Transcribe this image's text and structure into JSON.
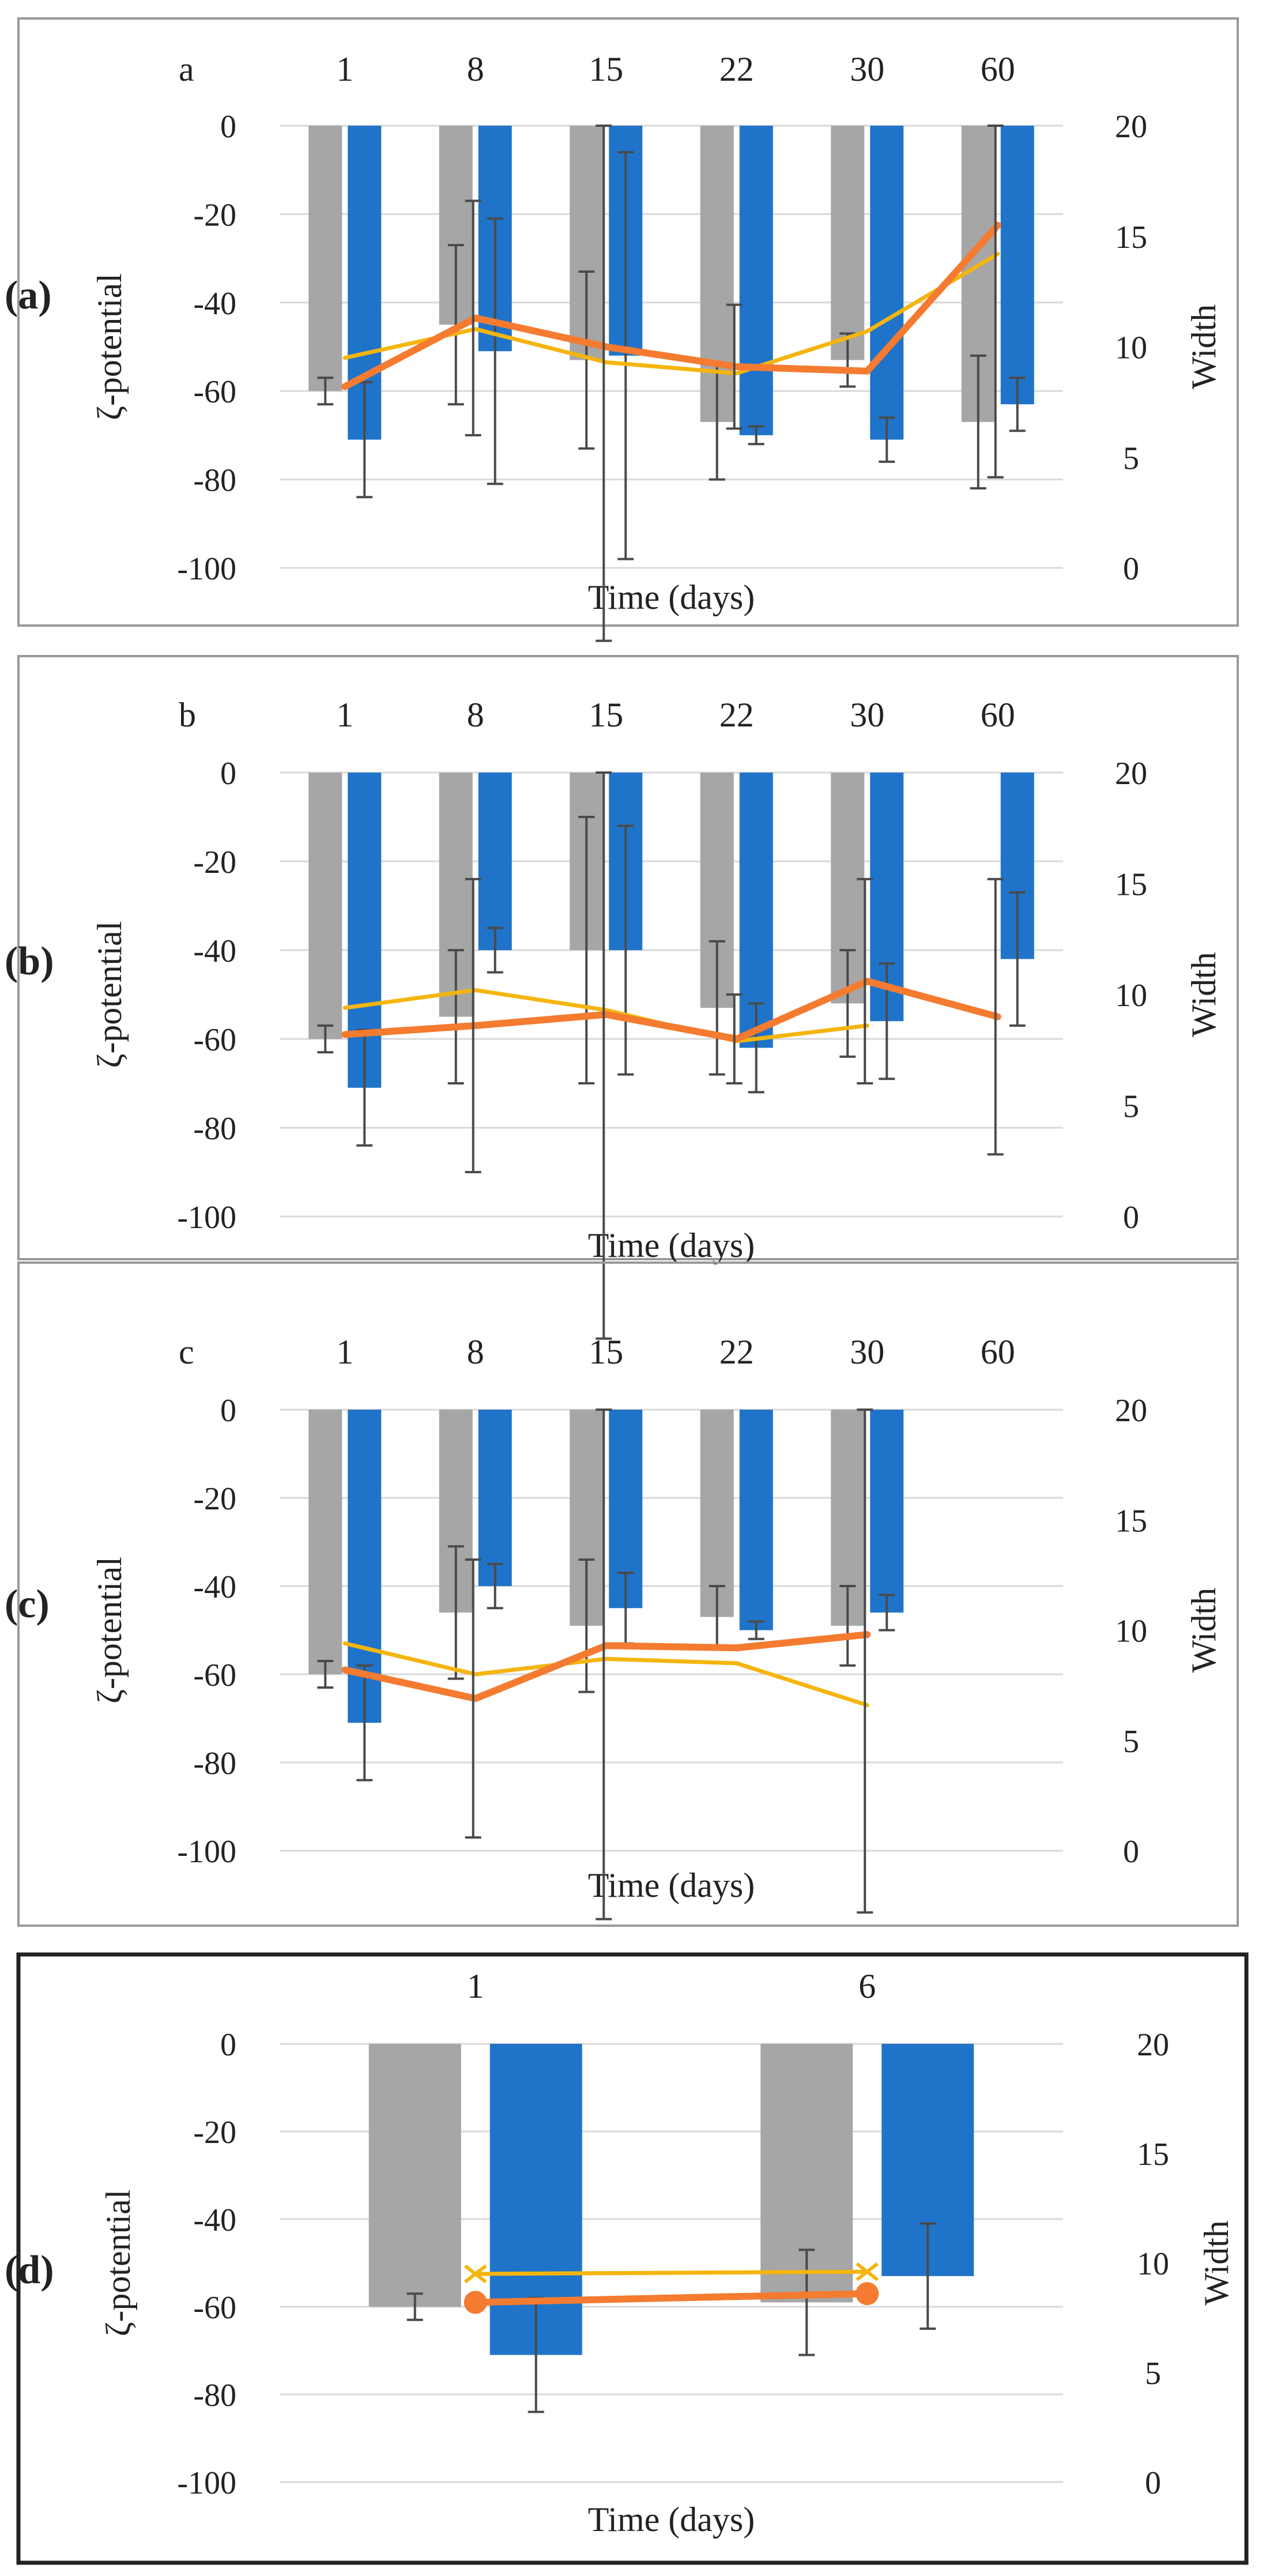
{
  "colors": {
    "gray_bar": "#a6a6a6",
    "blue_bar": "#1f74c9",
    "orange_line": "#f47b30",
    "yellow_line": "#f5b50f",
    "error_bar": "#4a4a4a",
    "grid": "#d9d9d9",
    "frame": "#999999",
    "frame_d": "#222222"
  },
  "chart_data": [
    {
      "type": "bar",
      "panel_tag": "(a)",
      "inner_label": "a",
      "categories": [
        "1",
        "8",
        "15",
        "22",
        "30",
        "60"
      ],
      "xlabel": "Time (days)",
      "ylabel": "ζ-potential",
      "y2label": "Width",
      "ylim": [
        -100,
        0
      ],
      "yticks": [
        "0",
        "-20",
        "-40",
        "-60",
        "-80",
        "-100"
      ],
      "y2lim": [
        0,
        20
      ],
      "y2ticks": [
        "20",
        "15",
        "10",
        "5",
        "0"
      ],
      "series": [
        {
          "name": "ζ-potential (gray)",
          "axis": "left",
          "kind": "bar",
          "values": [
            -60,
            -45,
            -53,
            -67,
            -53,
            -67
          ],
          "errors": [
            3,
            18,
            20,
            13,
            6,
            15
          ]
        },
        {
          "name": "ζ-potential (blue)",
          "axis": "left",
          "kind": "bar",
          "values": [
            -71,
            -51,
            -52,
            -70,
            -71,
            -63
          ],
          "errors": [
            13,
            30,
            46,
            2,
            5,
            6
          ]
        },
        {
          "name": "Width (orange)",
          "axis": "right",
          "kind": "line",
          "values": [
            8.2,
            11.3,
            10.0,
            9.1,
            8.9,
            15.5
          ],
          "errors": [
            null,
            5.3,
            13.3,
            2.8,
            null,
            11.4
          ]
        },
        {
          "name": "Width (yellow)",
          "axis": "right",
          "kind": "line",
          "values": [
            9.5,
            10.8,
            9.3,
            8.8,
            10.7,
            14.2
          ],
          "errors": [
            null,
            null,
            null,
            null,
            null,
            null
          ]
        }
      ]
    },
    {
      "type": "bar",
      "panel_tag": "(b)",
      "inner_label": "b",
      "categories": [
        "1",
        "8",
        "15",
        "22",
        "30",
        "60"
      ],
      "xlabel": "Time (days)",
      "ylabel": "ζ-potential",
      "y2label": "Width",
      "ylim": [
        -100,
        0
      ],
      "yticks": [
        "0",
        "-20",
        "-40",
        "-60",
        "-80",
        "-100"
      ],
      "y2lim": [
        0,
        20
      ],
      "y2ticks": [
        "20",
        "15",
        "10",
        "5",
        "0"
      ],
      "series": [
        {
          "name": "ζ-potential (gray)",
          "axis": "left",
          "kind": "bar",
          "values": [
            -60,
            -55,
            -40,
            -53,
            -52,
            null
          ],
          "errors": [
            3,
            15,
            30,
            15,
            12,
            null
          ]
        },
        {
          "name": "ζ-potential (blue)",
          "axis": "left",
          "kind": "bar",
          "values": [
            -71,
            -40,
            -40,
            -62,
            -56,
            -42
          ],
          "errors": [
            13,
            5,
            28,
            10,
            13,
            15
          ]
        },
        {
          "name": "Width (orange)",
          "axis": "right",
          "kind": "line",
          "values": [
            8.2,
            8.6,
            9.1,
            8.0,
            10.6,
            9.0
          ],
          "errors": [
            null,
            6.6,
            14.6,
            2.0,
            4.6,
            6.2
          ]
        },
        {
          "name": "Width (yellow)",
          "axis": "right",
          "kind": "line",
          "values": [
            9.4,
            10.2,
            9.3,
            7.9,
            8.6,
            null
          ],
          "errors": [
            null,
            null,
            null,
            null,
            null,
            null
          ]
        }
      ]
    },
    {
      "type": "bar",
      "panel_tag": "(c)",
      "inner_label": "c",
      "categories": [
        "1",
        "8",
        "15",
        "22",
        "30",
        "60"
      ],
      "xlabel": "Time (days)",
      "ylabel": "ζ-potential",
      "y2label": "Width",
      "ylim": [
        -100,
        0
      ],
      "yticks": [
        "0",
        "-20",
        "-40",
        "-60",
        "-80",
        "-100"
      ],
      "y2lim": [
        0,
        20
      ],
      "y2ticks": [
        "20",
        "15",
        "10",
        "5",
        "0"
      ],
      "series": [
        {
          "name": "ζ-potential (gray)",
          "axis": "left",
          "kind": "bar",
          "values": [
            -60,
            -46,
            -49,
            -47,
            -49,
            null
          ],
          "errors": [
            3,
            15,
            15,
            7,
            9,
            null
          ]
        },
        {
          "name": "ζ-potential (blue)",
          "axis": "left",
          "kind": "bar",
          "values": [
            -71,
            -40,
            -45,
            -50,
            -46,
            null
          ],
          "errors": [
            13,
            5,
            8,
            2,
            4,
            null
          ]
        },
        {
          "name": "Width (orange)",
          "axis": "right",
          "kind": "line",
          "values": [
            8.2,
            6.9,
            9.3,
            9.2,
            9.8,
            null
          ],
          "errors": [
            null,
            6.3,
            12.4,
            null,
            12.6,
            null
          ]
        },
        {
          "name": "Width (yellow)",
          "axis": "right",
          "kind": "line",
          "values": [
            9.4,
            8.0,
            8.7,
            8.5,
            6.6,
            null
          ],
          "errors": [
            null,
            null,
            null,
            null,
            null,
            null
          ]
        }
      ]
    },
    {
      "type": "bar",
      "panel_tag": "(d)",
      "inner_label": "",
      "categories": [
        "1",
        "6"
      ],
      "xlabel": "Time (days)",
      "ylabel": "ζ-potential",
      "y2label": "Width",
      "ylim": [
        -100,
        0
      ],
      "yticks": [
        "0",
        "-20",
        "-40",
        "-60",
        "-80",
        "-100"
      ],
      "y2lim": [
        0,
        20
      ],
      "y2ticks": [
        "20",
        "15",
        "10",
        "5",
        "0"
      ],
      "series": [
        {
          "name": "ζ-potential (gray)",
          "axis": "left",
          "kind": "bar",
          "values": [
            -60,
            -59
          ],
          "errors": [
            3,
            12
          ]
        },
        {
          "name": "ζ-potential (blue)",
          "axis": "left",
          "kind": "bar",
          "values": [
            -71,
            -53
          ],
          "errors": [
            13,
            12
          ]
        },
        {
          "name": "Width (orange)",
          "axis": "right",
          "kind": "line",
          "values": [
            8.2,
            8.6
          ],
          "errors": [
            null,
            null
          ],
          "marker": "circle"
        },
        {
          "name": "Width (yellow)",
          "axis": "right",
          "kind": "line",
          "values": [
            9.5,
            9.6
          ],
          "errors": [
            null,
            null
          ],
          "marker": "x"
        }
      ]
    }
  ]
}
